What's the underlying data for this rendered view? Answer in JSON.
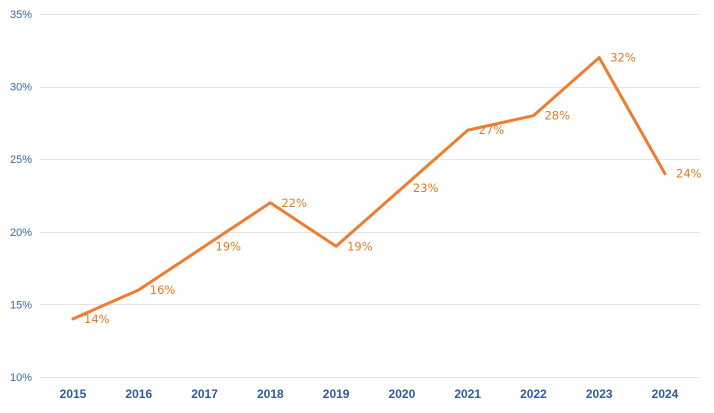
{
  "chart_data": {
    "type": "line",
    "title": "",
    "xlabel": "",
    "ylabel": "",
    "categories": [
      "2015",
      "2016",
      "2017",
      "2018",
      "2019",
      "2020",
      "2021",
      "2022",
      "2023",
      "2024"
    ],
    "series": [
      {
        "values": [
          14,
          16,
          19,
          22,
          19,
          23,
          27,
          28,
          32,
          24
        ]
      }
    ],
    "data_labels": [
      "14%",
      "16%",
      "19%",
      "22%",
      "19%",
      "23%",
      "27%",
      "28%",
      "32%",
      "24%"
    ],
    "ylim": [
      10,
      35
    ],
    "yticks": [
      10,
      15,
      20,
      25,
      30,
      35
    ],
    "ytick_labels": [
      "10%",
      "15%",
      "20%",
      "25%",
      "30%",
      "35%"
    ],
    "grid": true,
    "legend": "none",
    "colors": {
      "line": "#ed7d31",
      "axis_text": "#3a66a8",
      "grid": "#e4e4e4"
    }
  }
}
